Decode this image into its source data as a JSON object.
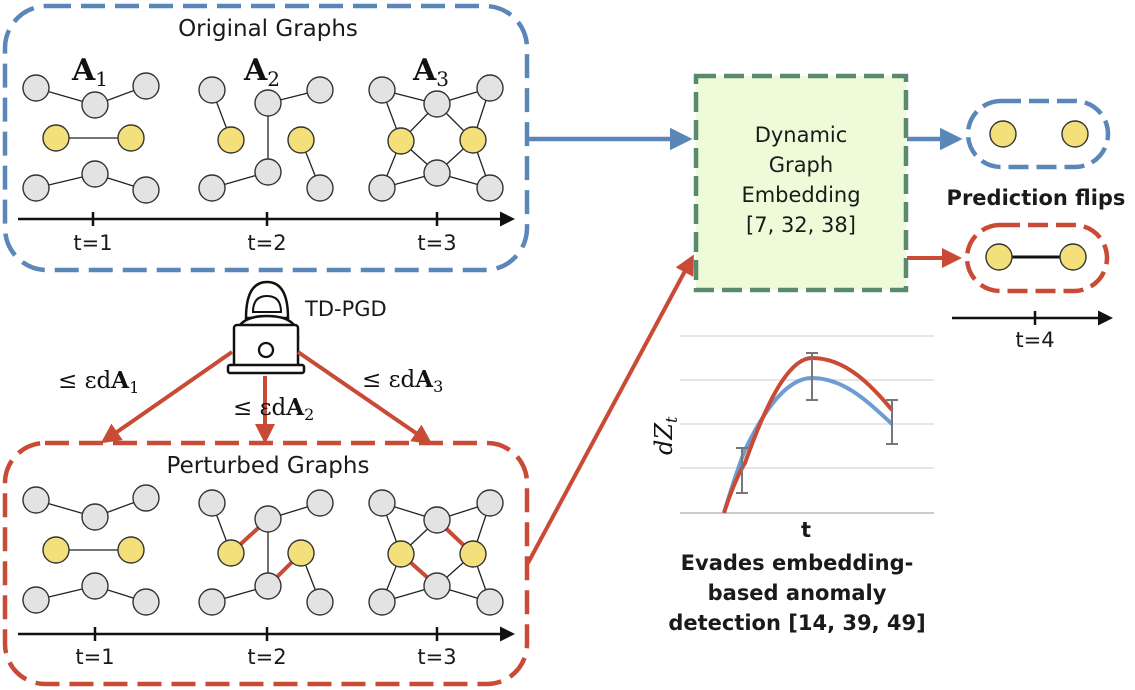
{
  "original": {
    "title": "Original Graphs",
    "matrices": [
      "A",
      "A",
      "A"
    ],
    "matrix_subscripts": [
      "1",
      "2",
      "3"
    ],
    "time_labels": [
      "t=1",
      "t=2",
      "t=3"
    ]
  },
  "perturbed": {
    "title": "Perturbed Graphs",
    "time_labels": [
      "t=1",
      "t=2",
      "t=3"
    ]
  },
  "attacker": {
    "name": "TD-PGD",
    "budget_prefix": "≤ εd",
    "budget_matrix": "A",
    "budget_subscripts": [
      "1",
      "2",
      "3"
    ]
  },
  "embedding": {
    "lines": [
      "Dynamic",
      "Graph",
      "Embedding",
      "[7, 32, 38]"
    ]
  },
  "prediction": {
    "label": "Prediction flips",
    "time_label": "t=4"
  },
  "anomaly_chart": {
    "ylabel_base": "dZ",
    "ylabel_sub": "t",
    "xlabel": "t",
    "caption_lines": [
      "Evades embedding-",
      "based anomaly",
      "detection [14, 39, 49]"
    ]
  },
  "colors": {
    "blue": "#5b86b8",
    "red": "#c94a35",
    "green": "#5a8a6e",
    "embedding_fill": "#eefbd9",
    "node_gray": "#e3e3e3",
    "node_yellow": "#f4e07a"
  }
}
